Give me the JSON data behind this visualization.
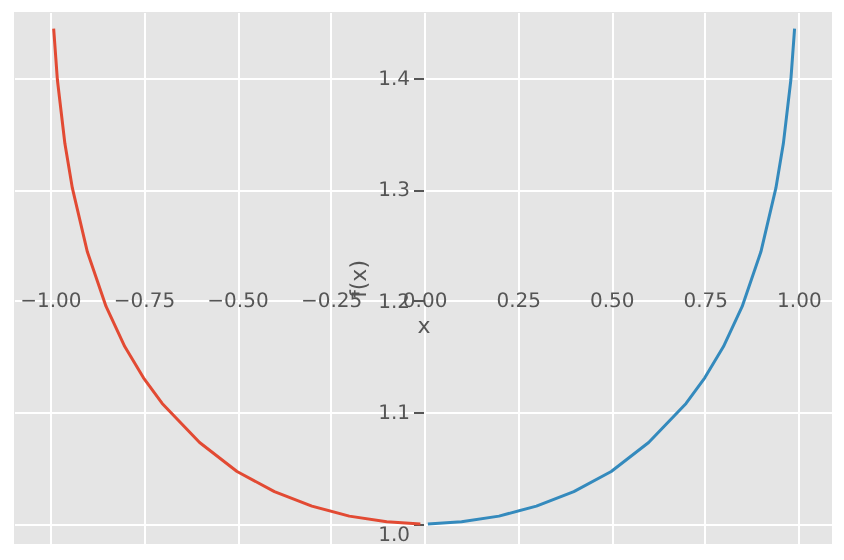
{
  "chart_data": {
    "type": "line",
    "xlabel": "x",
    "ylabel": "f(x)",
    "xlim": [
      -1.096,
      1.09
    ],
    "ylim": [
      0.982,
      1.459
    ],
    "xticks": [
      {
        "value": -1,
        "label": "−1.00"
      },
      {
        "value": -0.75,
        "label": "−0.75"
      },
      {
        "value": -0.5,
        "label": "−0.50"
      },
      {
        "value": -0.25,
        "label": "−0.25"
      },
      {
        "value": 0,
        "label": "0.00"
      },
      {
        "value": 0.25,
        "label": "0.25"
      },
      {
        "value": 0.5,
        "label": "0.50"
      },
      {
        "value": 0.75,
        "label": "0.75"
      },
      {
        "value": 1,
        "label": "1.00"
      }
    ],
    "yticks": [
      {
        "value": 1,
        "label": "1.0"
      },
      1.1,
      1.2,
      1.3,
      1.4
    ],
    "grid": true,
    "series": [
      {
        "color": "#e24a33",
        "x": [
          -0.99,
          -0.98,
          -0.96,
          -0.94,
          -0.9,
          -0.85,
          -0.8,
          -0.75,
          -0.7,
          -0.6,
          -0.5,
          -0.4,
          -0.3,
          -0.2,
          -0.1,
          -0.01
        ],
        "values": [
          1.444,
          1.398,
          1.341,
          1.301,
          1.244,
          1.195,
          1.159,
          1.131,
          1.108,
          1.073,
          1.047,
          1.029,
          1.016,
          1.007,
          1.002,
          1.0
        ]
      },
      {
        "color": "#348abd",
        "x": [
          0.01,
          0.1,
          0.2,
          0.3,
          0.4,
          0.5,
          0.6,
          0.7,
          0.75,
          0.8,
          0.85,
          0.9,
          0.94,
          0.96,
          0.98,
          0.99
        ],
        "values": [
          1.0,
          1.002,
          1.007,
          1.016,
          1.029,
          1.047,
          1.073,
          1.108,
          1.131,
          1.159,
          1.195,
          1.244,
          1.301,
          1.341,
          1.398,
          1.444
        ]
      }
    ]
  }
}
